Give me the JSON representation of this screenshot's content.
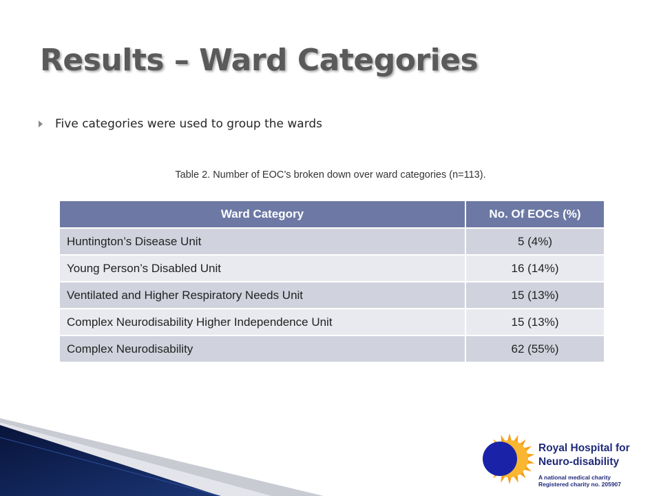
{
  "slide": {
    "title": "Results – Ward Categories",
    "bullet": "Five categories were used to group the wards",
    "caption": "Table 2. Number of EOC’s broken down over ward categories (n=113)."
  },
  "table": {
    "headers": [
      "Ward Category",
      "No. Of EOCs (%)"
    ],
    "rows": [
      {
        "category": "Huntington’s Disease Unit",
        "value": "5 (4%)"
      },
      {
        "category": "Young Person’s Disabled Unit",
        "value": "16 (14%)"
      },
      {
        "category": "Ventilated and Higher Respiratory Needs Unit",
        "value": "15 (13%)"
      },
      {
        "category": "Complex Neurodisability Higher Independence Unit",
        "value": "15 (13%)"
      },
      {
        "category": "Complex Neurodisability",
        "value": "62 (55%)"
      }
    ]
  },
  "logo": {
    "name_line1": "Royal Hospital for",
    "name_line2": "Neuro-disability",
    "tagline1": "A national medical charity",
    "tagline2": "Registered charity no. 205907"
  },
  "colors": {
    "title": "#5a5a5a",
    "header_bg": "#6d79a4",
    "row_dark": "#d0d3dd",
    "row_light": "#e9eaef",
    "logo_blue": "#1f2a7a",
    "sun_orange": "#f6a21a",
    "decor_navy": "#0c1a48"
  }
}
